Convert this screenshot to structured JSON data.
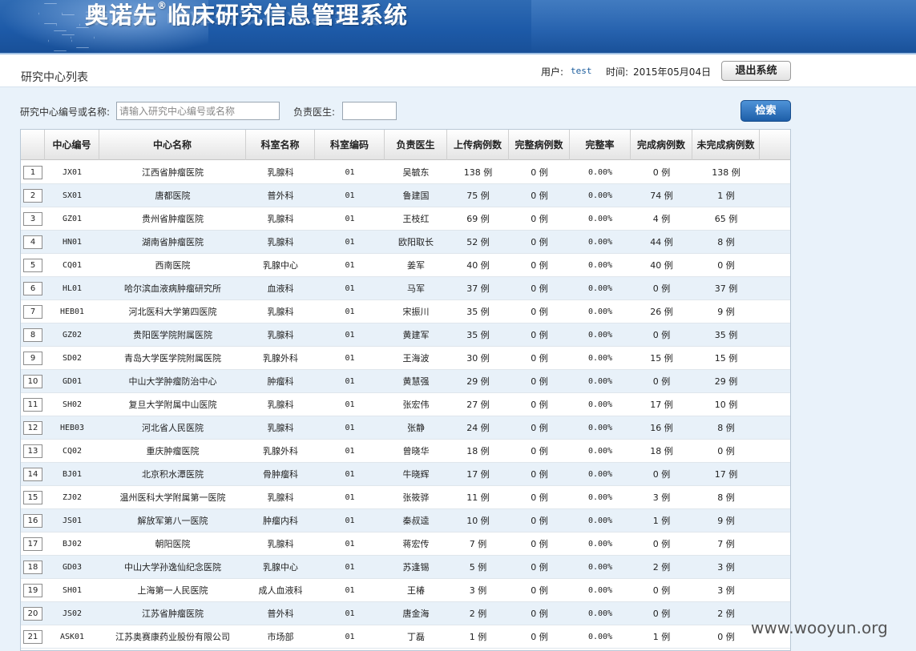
{
  "header": {
    "system_title": "奥诺先",
    "reg_mark": "®",
    "system_title_rest": "临床研究信息管理系统"
  },
  "topbar": {
    "page_title": "研究中心列表",
    "user_label": "用户:",
    "user_name": "test",
    "time_label": "时间:",
    "time_value": "2015年05月04日",
    "logout_label": "退出系统"
  },
  "search": {
    "center_label": "研究中心编号或名称:",
    "center_placeholder": "请输入研究中心编号或名称",
    "doctor_label": "负责医生:",
    "doctor_value": "",
    "search_button": "检索"
  },
  "table": {
    "columns": [
      "中心编号",
      "中心名称",
      "科室名称",
      "科室编码",
      "负责医生",
      "上传病例数",
      "完整病例数",
      "完整率",
      "完成病例数",
      "未完成病例数"
    ],
    "rows": [
      {
        "idx": "1",
        "code": "JX01",
        "name": "江西省肿瘤医院",
        "dept": "乳腺科",
        "dept_code": "01",
        "doctor": "吴毓东",
        "uploaded": "138 例",
        "complete": "0 例",
        "rate": "0.00%",
        "finished": "0 例",
        "unfinished": "138 例"
      },
      {
        "idx": "2",
        "code": "SX01",
        "name": "唐都医院",
        "dept": "普外科",
        "dept_code": "01",
        "doctor": "鲁建国",
        "uploaded": "75 例",
        "complete": "0 例",
        "rate": "0.00%",
        "finished": "74 例",
        "unfinished": "1 例"
      },
      {
        "idx": "3",
        "code": "GZ01",
        "name": "贵州省肿瘤医院",
        "dept": "乳腺科",
        "dept_code": "01",
        "doctor": "王枝红",
        "uploaded": "69 例",
        "complete": "0 例",
        "rate": "0.00%",
        "finished": "4 例",
        "unfinished": "65 例"
      },
      {
        "idx": "4",
        "code": "HN01",
        "name": "湖南省肿瘤医院",
        "dept": "乳腺科",
        "dept_code": "01",
        "doctor": "欧阳取长",
        "uploaded": "52 例",
        "complete": "0 例",
        "rate": "0.00%",
        "finished": "44 例",
        "unfinished": "8 例"
      },
      {
        "idx": "5",
        "code": "CQ01",
        "name": "西南医院",
        "dept": "乳腺中心",
        "dept_code": "01",
        "doctor": "姜军",
        "uploaded": "40 例",
        "complete": "0 例",
        "rate": "0.00%",
        "finished": "40 例",
        "unfinished": "0 例"
      },
      {
        "idx": "6",
        "code": "HL01",
        "name": "哈尔滨血液病肿瘤研究所",
        "dept": "血液科",
        "dept_code": "01",
        "doctor": "马军",
        "uploaded": "37 例",
        "complete": "0 例",
        "rate": "0.00%",
        "finished": "0 例",
        "unfinished": "37 例"
      },
      {
        "idx": "7",
        "code": "HEB01",
        "name": "河北医科大学第四医院",
        "dept": "乳腺科",
        "dept_code": "01",
        "doctor": "宋振川",
        "uploaded": "35 例",
        "complete": "0 例",
        "rate": "0.00%",
        "finished": "26 例",
        "unfinished": "9 例"
      },
      {
        "idx": "8",
        "code": "GZ02",
        "name": "贵阳医学院附属医院",
        "dept": "乳腺科",
        "dept_code": "01",
        "doctor": "黄建军",
        "uploaded": "35 例",
        "complete": "0 例",
        "rate": "0.00%",
        "finished": "0 例",
        "unfinished": "35 例"
      },
      {
        "idx": "9",
        "code": "SD02",
        "name": "青岛大学医学院附属医院",
        "dept": "乳腺外科",
        "dept_code": "01",
        "doctor": "王海波",
        "uploaded": "30 例",
        "complete": "0 例",
        "rate": "0.00%",
        "finished": "15 例",
        "unfinished": "15 例"
      },
      {
        "idx": "10",
        "code": "GD01",
        "name": "中山大学肿瘤防治中心",
        "dept": "肿瘤科",
        "dept_code": "01",
        "doctor": "黄慧强",
        "uploaded": "29 例",
        "complete": "0 例",
        "rate": "0.00%",
        "finished": "0 例",
        "unfinished": "29 例"
      },
      {
        "idx": "11",
        "code": "SH02",
        "name": "复旦大学附属中山医院",
        "dept": "乳腺科",
        "dept_code": "01",
        "doctor": "张宏伟",
        "uploaded": "27 例",
        "complete": "0 例",
        "rate": "0.00%",
        "finished": "17 例",
        "unfinished": "10 例"
      },
      {
        "idx": "12",
        "code": "HEB03",
        "name": "河北省人民医院",
        "dept": "乳腺科",
        "dept_code": "01",
        "doctor": "张静",
        "uploaded": "24 例",
        "complete": "0 例",
        "rate": "0.00%",
        "finished": "16 例",
        "unfinished": "8 例"
      },
      {
        "idx": "13",
        "code": "CQ02",
        "name": "重庆肿瘤医院",
        "dept": "乳腺外科",
        "dept_code": "01",
        "doctor": "曾晓华",
        "uploaded": "18 例",
        "complete": "0 例",
        "rate": "0.00%",
        "finished": "18 例",
        "unfinished": "0 例"
      },
      {
        "idx": "14",
        "code": "BJ01",
        "name": "北京积水潭医院",
        "dept": "骨肿瘤科",
        "dept_code": "01",
        "doctor": "牛晓辉",
        "uploaded": "17 例",
        "complete": "0 例",
        "rate": "0.00%",
        "finished": "0 例",
        "unfinished": "17 例"
      },
      {
        "idx": "15",
        "code": "ZJ02",
        "name": "温州医科大学附属第一医院",
        "dept": "乳腺科",
        "dept_code": "01",
        "doctor": "张筱骅",
        "uploaded": "11 例",
        "complete": "0 例",
        "rate": "0.00%",
        "finished": "3 例",
        "unfinished": "8 例"
      },
      {
        "idx": "16",
        "code": "JS01",
        "name": "解放军第八一医院",
        "dept": "肿瘤内科",
        "dept_code": "01",
        "doctor": "秦叔逵",
        "uploaded": "10 例",
        "complete": "0 例",
        "rate": "0.00%",
        "finished": "1 例",
        "unfinished": "9 例"
      },
      {
        "idx": "17",
        "code": "BJ02",
        "name": "朝阳医院",
        "dept": "乳腺科",
        "dept_code": "01",
        "doctor": "蒋宏传",
        "uploaded": "7 例",
        "complete": "0 例",
        "rate": "0.00%",
        "finished": "0 例",
        "unfinished": "7 例"
      },
      {
        "idx": "18",
        "code": "GD03",
        "name": "中山大学孙逸仙纪念医院",
        "dept": "乳腺中心",
        "dept_code": "01",
        "doctor": "苏逢锡",
        "uploaded": "5 例",
        "complete": "0 例",
        "rate": "0.00%",
        "finished": "2 例",
        "unfinished": "3 例"
      },
      {
        "idx": "19",
        "code": "SH01",
        "name": "上海第一人民医院",
        "dept": "成人血液科",
        "dept_code": "01",
        "doctor": "王椿",
        "uploaded": "3 例",
        "complete": "0 例",
        "rate": "0.00%",
        "finished": "0 例",
        "unfinished": "3 例"
      },
      {
        "idx": "20",
        "code": "JS02",
        "name": "江苏省肿瘤医院",
        "dept": "普外科",
        "dept_code": "01",
        "doctor": "唐金海",
        "uploaded": "2 例",
        "complete": "0 例",
        "rate": "0.00%",
        "finished": "0 例",
        "unfinished": "2 例"
      },
      {
        "idx": "21",
        "code": "ASK01",
        "name": "江苏奥赛康药业股份有限公司",
        "dept": "市场部",
        "dept_code": "01",
        "doctor": "丁磊",
        "uploaded": "1 例",
        "complete": "0 例",
        "rate": "0.00%",
        "finished": "1 例",
        "unfinished": "0 例"
      }
    ]
  },
  "watermark": "www.wooyun.org"
}
